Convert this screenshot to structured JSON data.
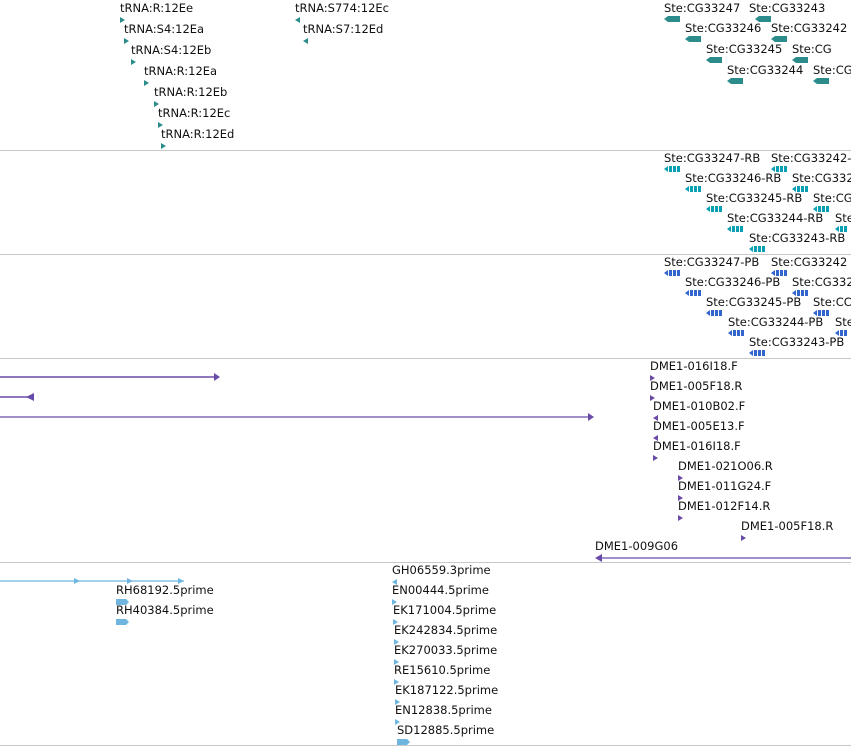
{
  "colors": {
    "trna": "#2c8c8c",
    "transcript": "#0aa0b4",
    "protein": "#3366cc",
    "clone": "#6a4aa8",
    "est": "#6eb6e0",
    "divider": "#c8c8c8"
  },
  "tracks": {
    "trna": {
      "features": [
        {
          "label": "tRNA:R:12Ee"
        },
        {
          "label": "tRNA:S4:12Ea"
        },
        {
          "label": "tRNA:S4:12Eb"
        },
        {
          "label": "tRNA:R:12Ea"
        },
        {
          "label": "tRNA:R:12Eb"
        },
        {
          "label": "tRNA:R:12Ec"
        },
        {
          "label": "tRNA:R:12Ed"
        },
        {
          "label": "tRNA:S774:12Ec"
        },
        {
          "label": "tRNA:S7:12Ed"
        }
      ],
      "genes": [
        {
          "label": "Ste:CG33247"
        },
        {
          "label": "Ste:CG33243"
        },
        {
          "label": "Ste:CG33246"
        },
        {
          "label": "Ste:CG33242"
        },
        {
          "label": "Ste:CG33245"
        },
        {
          "label": "Ste:CG33244"
        },
        {
          "label": "Ste:CG"
        },
        {
          "label": "Ste:CG"
        }
      ]
    },
    "transcripts": {
      "features": [
        {
          "label": "Ste:CG33247-RB"
        },
        {
          "label": "Ste:CG33242-"
        },
        {
          "label": "Ste:CG33246-RB"
        },
        {
          "label": "Ste:CG332"
        },
        {
          "label": "Ste:CG33245-RB"
        },
        {
          "label": "Ste:CG"
        },
        {
          "label": "Ste:CG33244-RB"
        },
        {
          "label": "Ste"
        },
        {
          "label": "Ste:CG33243-RB"
        }
      ]
    },
    "proteins": {
      "features": [
        {
          "label": "Ste:CG33247-PB"
        },
        {
          "label": "Ste:CG33242"
        },
        {
          "label": "Ste:CG33246-PB"
        },
        {
          "label": "Ste:CG332"
        },
        {
          "label": "Ste:CG33245-PB"
        },
        {
          "label": "Ste:CC"
        },
        {
          "label": "Ste:CG33244-PB"
        },
        {
          "label": "Ste"
        },
        {
          "label": "Ste:CG33243-PB"
        }
      ]
    },
    "clones": {
      "features": [
        {
          "label": "DME1-016I18.F"
        },
        {
          "label": "DME1-005F18.R"
        },
        {
          "label": "DME1-010B02.F"
        },
        {
          "label": "DME1-005E13.F"
        },
        {
          "label": "DME1-016I18.F"
        },
        {
          "label": "DME1-021O06.R"
        },
        {
          "label": "DME1-011G24.F"
        },
        {
          "label": "DME1-012F14.R"
        },
        {
          "label": "DME1-005F18.R"
        },
        {
          "label": "DME1-009G06"
        }
      ]
    },
    "ests": {
      "features": [
        {
          "label": "RH68192.5prime"
        },
        {
          "label": "RH40384.5prime"
        },
        {
          "label": "GH06559.3prime"
        },
        {
          "label": "EN00444.5prime"
        },
        {
          "label": "EK171004.5prime"
        },
        {
          "label": "EK242834.5prime"
        },
        {
          "label": "EK270033.5prime"
        },
        {
          "label": "RE15610.5prime"
        },
        {
          "label": "EK187122.5prime"
        },
        {
          "label": "EN12838.5prime"
        },
        {
          "label": "SD12885.5prime"
        }
      ]
    }
  }
}
